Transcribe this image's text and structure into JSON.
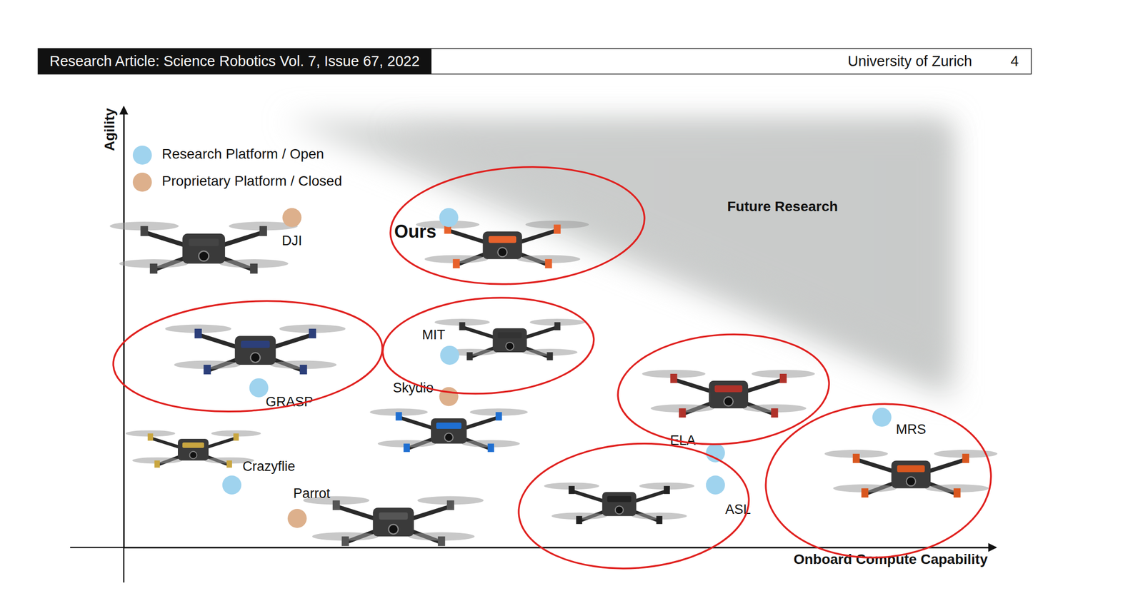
{
  "header": {
    "journal": "Research Article: Science Robotics Vol. 7, Issue 67, 2022",
    "institution": "University of Zurich",
    "page": 4
  },
  "chart_data": {
    "type": "scatter",
    "x_label": "Onboard Compute Capability",
    "y_label": "Agility",
    "annotations": [
      "Future Research"
    ],
    "xlim": [
      0,
      100
    ],
    "ylim": [
      0,
      100
    ],
    "xticks": [],
    "yticks": [],
    "tick_labels": false,
    "grid": false,
    "legend": "top-left",
    "marker": "circle",
    "series": [
      {
        "name": "Research Platform / Open",
        "color": "#9fd3ee",
        "labels": [
          "Ours",
          "GRASP",
          "MIT",
          "Crazyflie",
          "ELA",
          "ASL",
          "MRS"
        ],
        "x": [
          37.3,
          15.5,
          37.4,
          12.4,
          67.9,
          67.9,
          87.0
        ],
        "values": [
          75.0,
          36.3,
          43.7,
          14.2,
          21.5,
          14.2,
          29.6
        ]
      },
      {
        "name": "Proprietary Platform / Closed",
        "color": "#ddb08c",
        "labels": [
          "DJI",
          "Skydio",
          "Parrot"
        ],
        "x": [
          19.3,
          37.3,
          19.9
        ],
        "values": [
          75.0,
          34.3,
          6.6
        ]
      }
    ]
  }
}
